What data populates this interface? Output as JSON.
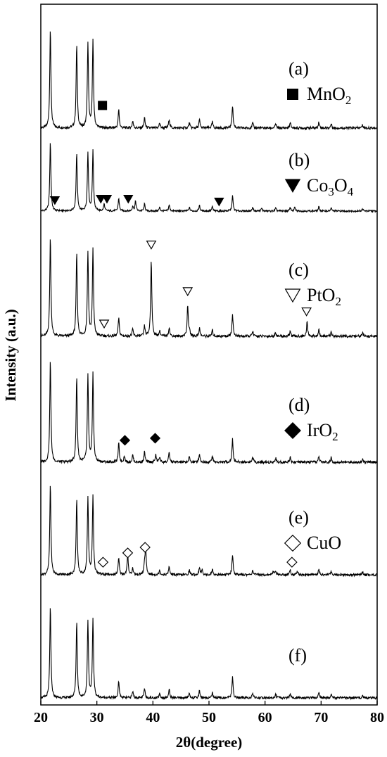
{
  "chart_data": {
    "type": "line",
    "xlabel": "2θ(degree)",
    "ylabel": "Intensity (a.u.)",
    "xlim": [
      20,
      80
    ],
    "x_ticks": [
      20,
      30,
      40,
      50,
      60,
      70,
      80
    ],
    "grid": false,
    "base_peaks": [
      [
        21.7,
        0.98
      ],
      [
        26.4,
        0.82
      ],
      [
        28.4,
        0.83
      ],
      [
        29.3,
        0.85
      ],
      [
        33.9,
        0.18
      ],
      [
        36.4,
        0.07
      ],
      [
        38.5,
        0.1
      ],
      [
        41.2,
        0.05
      ],
      [
        42.9,
        0.09
      ],
      [
        46.5,
        0.05
      ],
      [
        48.3,
        0.08
      ],
      [
        50.6,
        0.06
      ],
      [
        54.2,
        0.22
      ],
      [
        57.8,
        0.05
      ],
      [
        61.9,
        0.04
      ],
      [
        64.5,
        0.05
      ],
      [
        69.6,
        0.06
      ],
      [
        71.8,
        0.04
      ],
      [
        77.4,
        0.03
      ]
    ],
    "panels": [
      {
        "label": "(a)",
        "legend": {
          "symbol": "filled-square",
          "text": "MnO",
          "sub": "2"
        },
        "extra_peaks": [],
        "markers": [
          {
            "symbol": "filled-square",
            "x": 31.0,
            "y": 0.18
          }
        ]
      },
      {
        "label": "(b)",
        "legend": {
          "symbol": "filled-down-triangle",
          "text": "Co",
          "sub": "3",
          "text2": "O",
          "sub2": "4"
        },
        "extra_peaks": [
          [
            31.3,
            0.1
          ],
          [
            36.9,
            0.14
          ],
          [
            59.4,
            0.04
          ],
          [
            65.3,
            0.05
          ]
        ],
        "markers": [
          {
            "symbol": "filled-down-triangle",
            "x": 22.5,
            "y": 0.09
          },
          {
            "symbol": "filled-down-triangle",
            "x": 30.7,
            "y": 0.11
          },
          {
            "symbol": "filled-down-triangle",
            "x": 31.8,
            "y": 0.11
          },
          {
            "symbol": "filled-down-triangle",
            "x": 35.6,
            "y": 0.11
          },
          {
            "symbol": "filled-down-triangle",
            "x": 51.8,
            "y": 0.07
          }
        ]
      },
      {
        "label": "(c)",
        "legend": {
          "symbol": "open-down-triangle",
          "text": "PtO",
          "sub": "2"
        },
        "extra_peaks": [
          [
            39.7,
            0.76
          ],
          [
            46.2,
            0.3
          ],
          [
            67.5,
            0.14
          ]
        ],
        "markers": [
          {
            "symbol": "open-down-triangle",
            "x": 31.3,
            "y": 0.08
          },
          {
            "symbol": "open-down-triangle",
            "x": 39.7,
            "y": 0.86
          },
          {
            "symbol": "open-down-triangle",
            "x": 46.2,
            "y": 0.4
          },
          {
            "symbol": "open-down-triangle",
            "x": 67.4,
            "y": 0.2
          }
        ]
      },
      {
        "label": "(d)",
        "legend": {
          "symbol": "filled-diamond",
          "text": "IrO",
          "sub": "2"
        },
        "extra_peaks": [
          [
            34.9,
            0.06
          ],
          [
            40.5,
            0.07
          ]
        ],
        "markers": [
          {
            "symbol": "filled-diamond",
            "x": 35.0,
            "y": 0.17
          },
          {
            "symbol": "filled-diamond",
            "x": 40.4,
            "y": 0.19
          }
        ]
      },
      {
        "label": "(e)",
        "legend": {
          "symbol": "open-diamond",
          "text": "CuO",
          "sub": ""
        },
        "extra_peaks": [
          [
            35.5,
            0.22
          ],
          [
            38.7,
            0.28
          ],
          [
            48.8,
            0.05
          ],
          [
            61.5,
            0.04
          ],
          [
            65.8,
            0.04
          ]
        ],
        "markers": [
          {
            "symbol": "open-diamond",
            "x": 31.1,
            "y": 0.09
          },
          {
            "symbol": "open-diamond",
            "x": 35.5,
            "y": 0.19
          },
          {
            "symbol": "open-diamond",
            "x": 38.6,
            "y": 0.25
          },
          {
            "symbol": "open-diamond",
            "x": 64.8,
            "y": 0.09
          }
        ]
      },
      {
        "label": "(f)",
        "legend": null,
        "extra_peaks": [],
        "markers": []
      }
    ]
  }
}
